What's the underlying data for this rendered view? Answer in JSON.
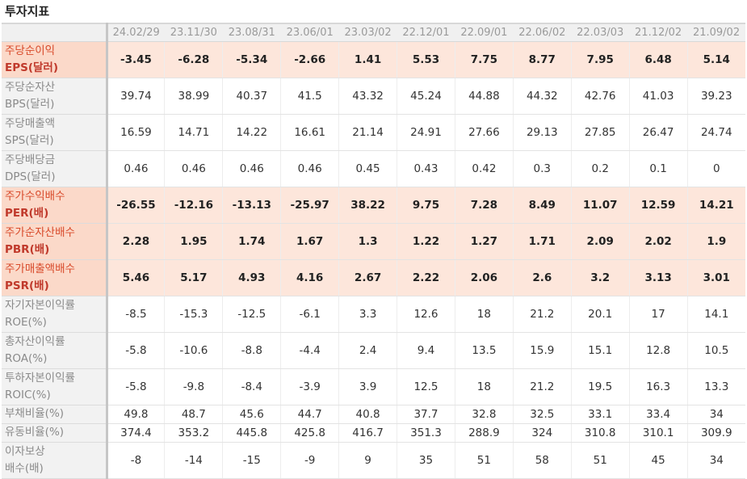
{
  "title": "투자지표",
  "columns": [
    "24.02/29",
    "23.11/30",
    "23.08/31",
    "23.06/01",
    "23.03/02",
    "22.12/01",
    "22.09/01",
    "22.06/02",
    "22.03/03",
    "21.12/02",
    "21.09/02"
  ],
  "rows": [
    {
      "label1": "주당순이익",
      "label2": "EPS(달러)",
      "highlight": true,
      "values": [
        "-3.45",
        "-6.28",
        "-5.34",
        "-2.66",
        "1.41",
        "5.53",
        "7.75",
        "8.77",
        "7.95",
        "6.48",
        "5.14"
      ]
    },
    {
      "label1": "주당순자산",
      "label2": "BPS(달러)",
      "highlight": false,
      "values": [
        "39.74",
        "38.99",
        "40.37",
        "41.5",
        "43.32",
        "45.24",
        "44.88",
        "44.32",
        "42.76",
        "41.03",
        "39.23"
      ]
    },
    {
      "label1": "주당매출액",
      "label2": "SPS(달러)",
      "highlight": false,
      "values": [
        "16.59",
        "14.71",
        "14.22",
        "16.61",
        "21.14",
        "24.91",
        "27.66",
        "29.13",
        "27.85",
        "26.47",
        "24.74"
      ]
    },
    {
      "label1": "주당배당금",
      "label2": "DPS(달러)",
      "highlight": false,
      "values": [
        "0.46",
        "0.46",
        "0.46",
        "0.46",
        "0.45",
        "0.43",
        "0.42",
        "0.3",
        "0.2",
        "0.1",
        "0"
      ]
    },
    {
      "label1": "주가수익배수",
      "label2": "PER(배)",
      "highlight": true,
      "values": [
        "-26.55",
        "-12.16",
        "-13.13",
        "-25.97",
        "38.22",
        "9.75",
        "7.28",
        "8.49",
        "11.07",
        "12.59",
        "14.21"
      ]
    },
    {
      "label1": "주가순자산배수",
      "label2": "PBR(배)",
      "highlight": true,
      "values": [
        "2.28",
        "1.95",
        "1.74",
        "1.67",
        "1.3",
        "1.22",
        "1.27",
        "1.71",
        "2.09",
        "2.02",
        "1.9"
      ]
    },
    {
      "label1": "주가매출액배수",
      "label2": "PSR(배)",
      "highlight": true,
      "values": [
        "5.46",
        "5.17",
        "4.93",
        "4.16",
        "2.67",
        "2.22",
        "2.06",
        "2.6",
        "3.2",
        "3.13",
        "3.01"
      ]
    },
    {
      "label1": "자기자본이익률",
      "label2": "ROE(%)",
      "highlight": false,
      "values": [
        "-8.5",
        "-15.3",
        "-12.5",
        "-6.1",
        "3.3",
        "12.6",
        "18",
        "21.2",
        "20.1",
        "17",
        "14.1"
      ]
    },
    {
      "label1": "총자산이익률",
      "label2": "ROA(%)",
      "highlight": false,
      "values": [
        "-5.8",
        "-10.6",
        "-8.8",
        "-4.4",
        "2.4",
        "9.4",
        "13.5",
        "15.9",
        "15.1",
        "12.8",
        "10.5"
      ]
    },
    {
      "label1": "투하자본이익률",
      "label2": "ROIC(%)",
      "highlight": false,
      "values": [
        "-5.8",
        "-9.8",
        "-8.4",
        "-3.9",
        "3.9",
        "12.5",
        "18",
        "21.2",
        "19.5",
        "16.3",
        "13.3"
      ]
    },
    {
      "label1": "부채비율(%)",
      "label2": "",
      "highlight": false,
      "values": [
        "49.8",
        "48.7",
        "45.6",
        "44.7",
        "40.8",
        "37.7",
        "32.8",
        "32.5",
        "33.1",
        "33.4",
        "34"
      ]
    },
    {
      "label1": "유동비율(%)",
      "label2": "",
      "highlight": false,
      "values": [
        "374.4",
        "353.2",
        "445.8",
        "425.8",
        "416.7",
        "351.3",
        "288.9",
        "324",
        "310.8",
        "310.1",
        "309.9"
      ]
    },
    {
      "label1": "이자보상",
      "label2": "배수(배)",
      "highlight": false,
      "values": [
        "-8",
        "-14",
        "-15",
        "-9",
        "9",
        "35",
        "51",
        "58",
        "51",
        "45",
        "34"
      ]
    }
  ]
}
